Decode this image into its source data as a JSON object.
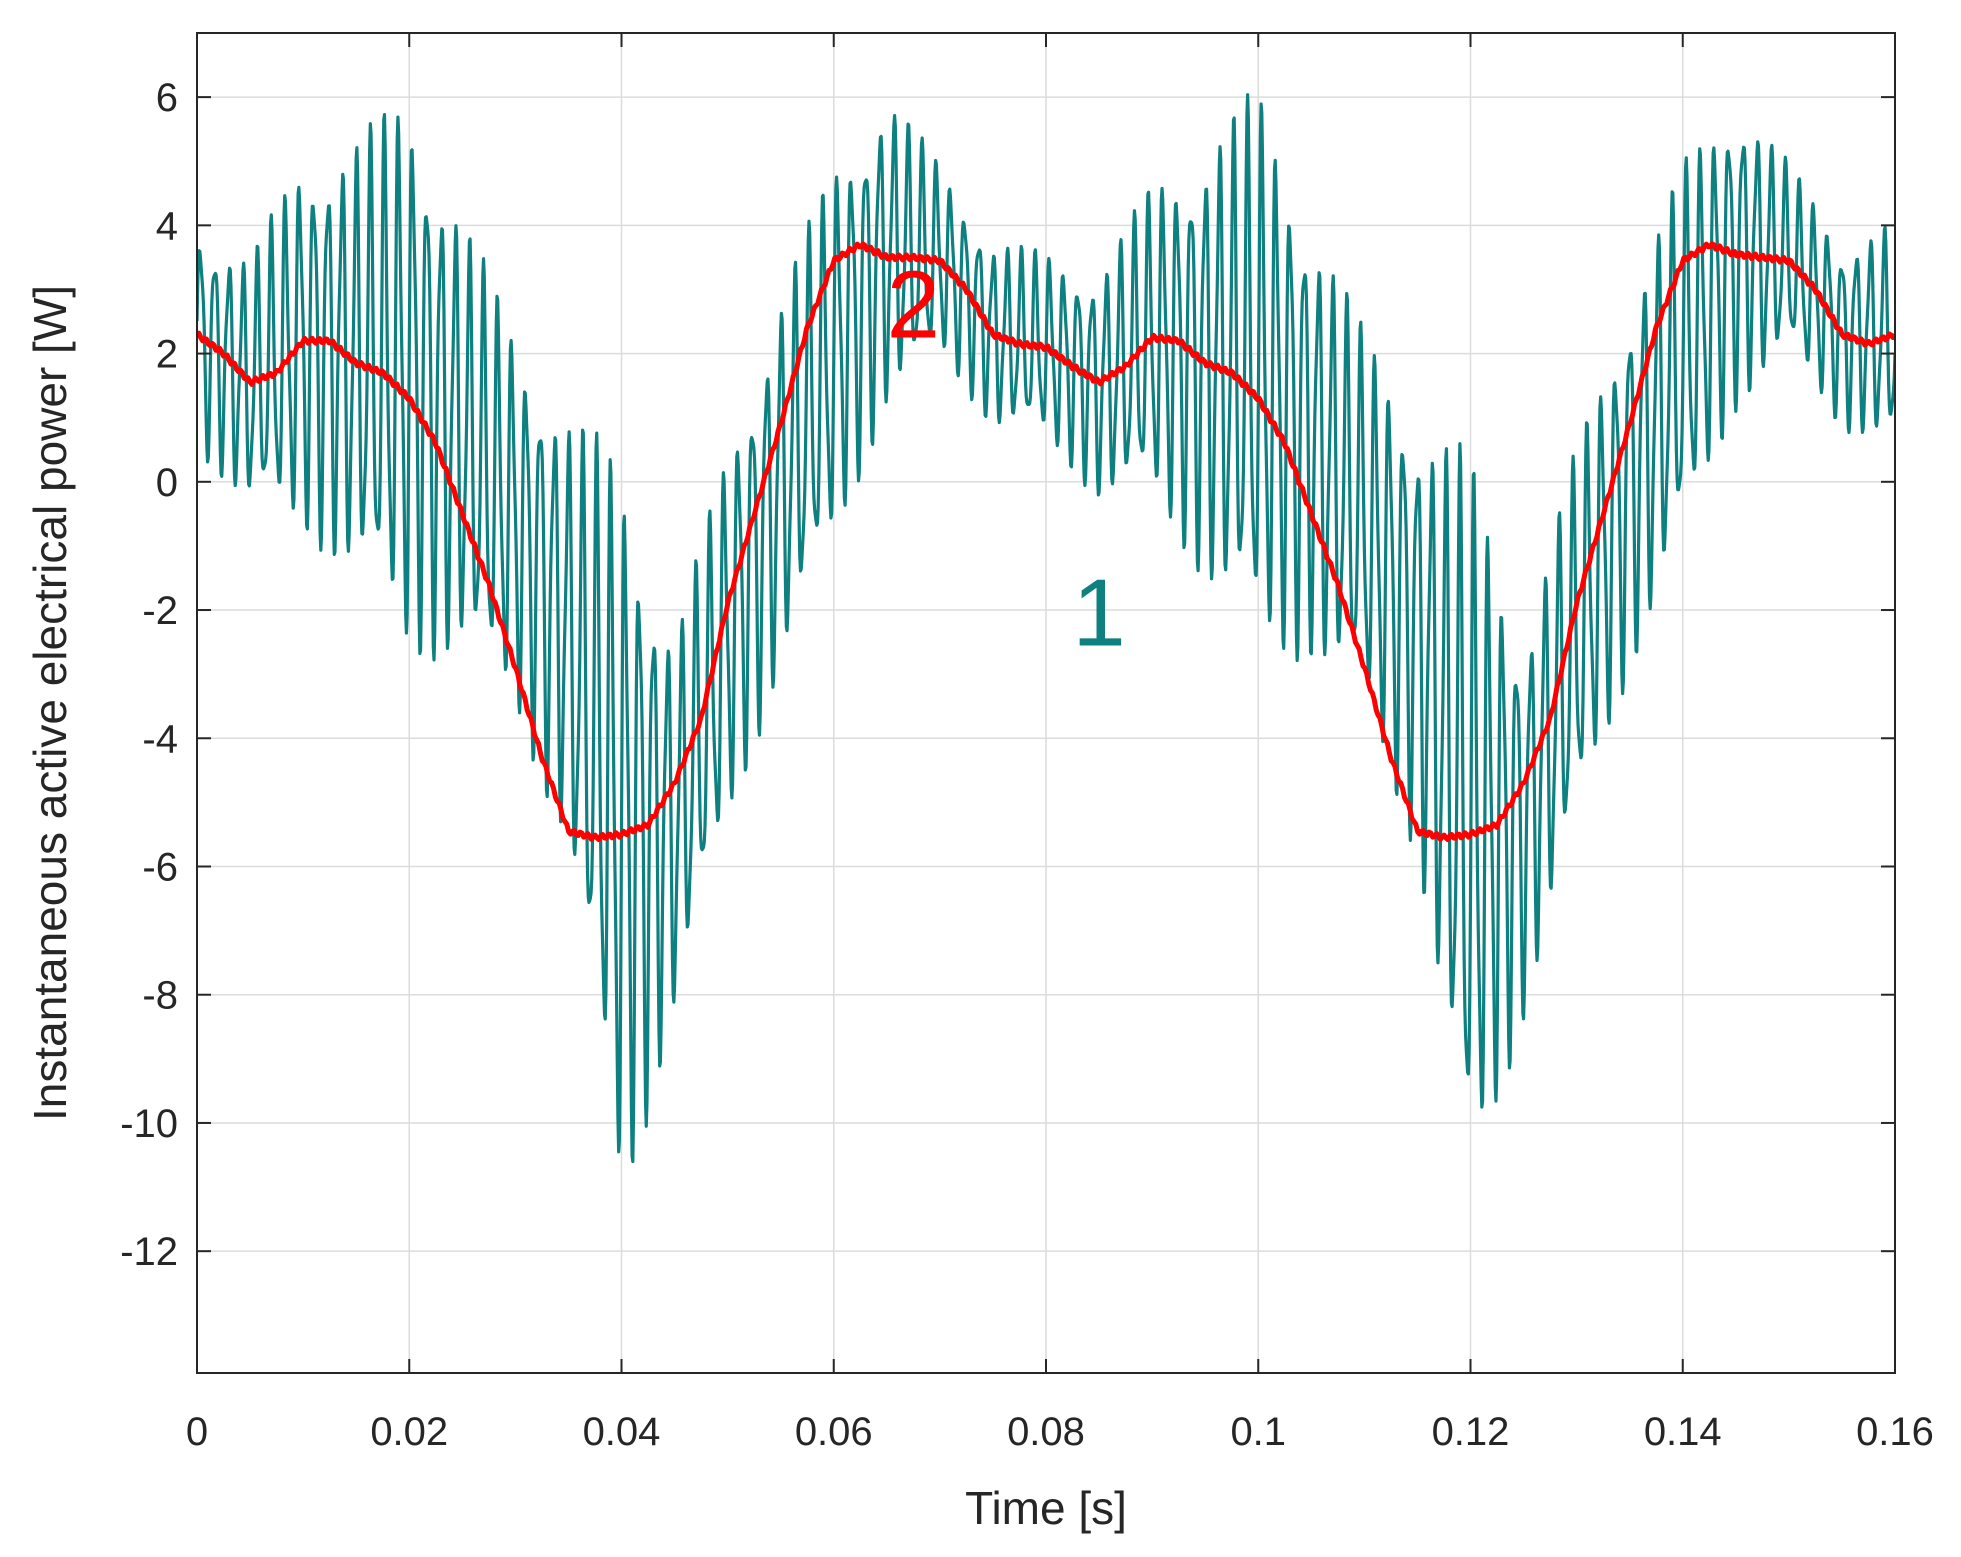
{
  "chart_data": {
    "type": "line",
    "xlabel": "Time [s]",
    "ylabel": "Instantaneous active electrical power [W]",
    "xlim": [
      0,
      0.16
    ],
    "ylim": [
      -13.9,
      7.0
    ],
    "grid": true,
    "x_ticks": [
      {
        "value": 0,
        "label": "0"
      },
      {
        "value": 0.02,
        "label": "0.02"
      },
      {
        "value": 0.04,
        "label": "0.04"
      },
      {
        "value": 0.06,
        "label": "0.06"
      },
      {
        "value": 0.08,
        "label": "0.08"
      },
      {
        "value": 0.1,
        "label": "0.1"
      },
      {
        "value": 0.12,
        "label": "0.12"
      },
      {
        "value": 0.14,
        "label": "0.14"
      },
      {
        "value": 0.16,
        "label": "0.16"
      }
    ],
    "y_ticks": [
      {
        "value": 6,
        "label": "6"
      },
      {
        "value": 4,
        "label": "4"
      },
      {
        "value": 2,
        "label": "2"
      },
      {
        "value": 0,
        "label": "0"
      },
      {
        "value": -2,
        "label": "-2"
      },
      {
        "value": -4,
        "label": "-4"
      },
      {
        "value": -6,
        "label": "-6"
      },
      {
        "value": -8,
        "label": "-8"
      },
      {
        "value": -10,
        "label": "-10"
      },
      {
        "value": -12,
        "label": "-12"
      }
    ],
    "series": [
      {
        "label": "1",
        "color": "#0e8080",
        "label_pos": [
          0.085,
          -2.55
        ],
        "x": [
          0,
          0.005,
          0.01,
          0.015,
          0.02,
          0.025,
          0.03,
          0.035,
          0.04,
          0.045,
          0.05,
          0.055,
          0.06,
          0.065,
          0.07,
          0.075,
          0.08,
          0.085,
          0.09,
          0.095,
          0.1,
          0.105,
          0.11,
          0.115,
          0.12,
          0.125,
          0.13,
          0.135,
          0.14,
          0.145,
          0.15,
          0.155,
          0.16
        ],
        "y": [
          2.3,
          1.5,
          2.2,
          1.9,
          1.7,
          0.7,
          -0.6,
          -2.4,
          -5.5,
          -5.4,
          -2.4,
          0.0,
          2.0,
          3.6,
          3.5,
          2.3,
          2.1,
          1.5,
          2.2,
          1.9,
          1.7,
          0.7,
          -0.6,
          -2.4,
          -5.5,
          -5.4,
          -2.4,
          0.0,
          2.0,
          3.6,
          3.5,
          2.3,
          2.3
        ],
        "oscillation_amplitude": [
          1.8,
          2.0,
          3.0,
          3.5,
          4.5,
          3.5,
          3.0,
          3.5,
          6.0,
          3.0,
          3.0,
          3.0,
          3.0,
          2.5,
          1.5,
          1.5,
          1.5,
          1.8,
          2.5,
          3.5,
          4.5,
          3.5,
          3.0,
          3.5,
          6.0,
          3.0,
          3.0,
          3.0,
          3.0,
          2.5,
          1.5,
          1.5,
          1.8
        ],
        "oscillation_frequency": 750
      },
      {
        "label": "2",
        "color": "#ff0000",
        "label_pos": [
          0.0675,
          2.25
        ],
        "x": [
          0,
          0.0025,
          0.005,
          0.0075,
          0.01,
          0.0125,
          0.015,
          0.0175,
          0.02,
          0.0225,
          0.025,
          0.0275,
          0.03,
          0.0325,
          0.035,
          0.0375,
          0.04,
          0.0425,
          0.045,
          0.0475,
          0.05,
          0.0525,
          0.055,
          0.0575,
          0.06,
          0.0625,
          0.065,
          0.0675,
          0.07,
          0.0725,
          0.075,
          0.0775,
          0.08,
          0.0825,
          0.085,
          0.0875,
          0.09,
          0.0925,
          0.095,
          0.0975,
          0.1,
          0.1025,
          0.105,
          0.1075,
          0.11,
          0.1125,
          0.115,
          0.1175,
          0.12,
          0.1225,
          0.125,
          0.1275,
          0.13,
          0.1325,
          0.135,
          0.1375,
          0.14,
          0.1425,
          0.145,
          0.1475,
          0.15,
          0.1525,
          0.155,
          0.1575,
          0.16
        ],
        "y": [
          2.3,
          2.0,
          1.55,
          1.7,
          2.2,
          2.2,
          1.85,
          1.7,
          1.3,
          0.6,
          -0.5,
          -1.6,
          -2.9,
          -4.3,
          -5.45,
          -5.55,
          -5.5,
          -5.35,
          -4.7,
          -3.7,
          -1.9,
          -0.5,
          0.9,
          2.4,
          3.45,
          3.7,
          3.5,
          3.5,
          3.45,
          3.0,
          2.3,
          2.15,
          2.1,
          1.8,
          1.55,
          1.8,
          2.25,
          2.2,
          1.85,
          1.7,
          1.3,
          0.6,
          -0.5,
          -1.6,
          -2.9,
          -4.3,
          -5.45,
          -5.55,
          -5.5,
          -5.35,
          -4.7,
          -3.7,
          -1.9,
          -0.5,
          0.9,
          2.4,
          3.45,
          3.7,
          3.55,
          3.5,
          3.45,
          3.0,
          2.3,
          2.15,
          2.3
        ]
      }
    ]
  }
}
